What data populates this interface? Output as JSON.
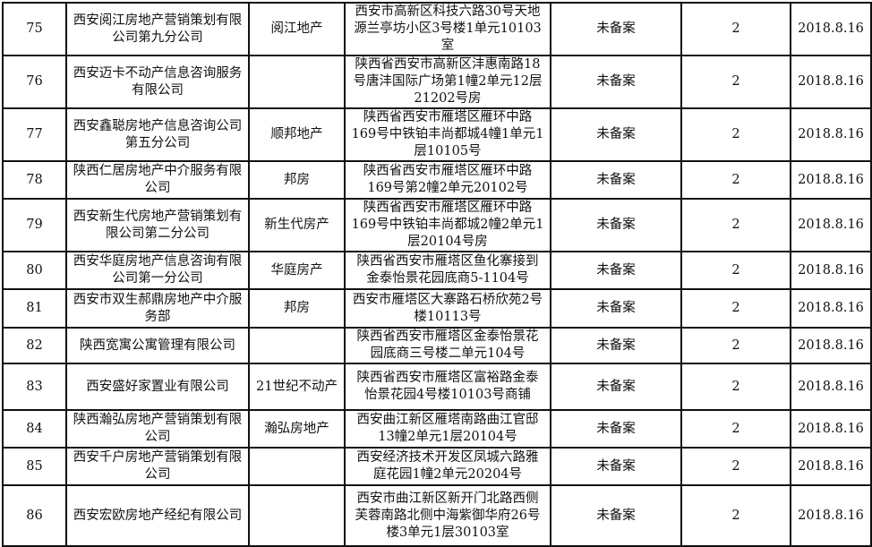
{
  "rows": [
    {
      "no": "75",
      "company": "西安阅江房地产营销策划有限公司第九分公司",
      "brand": "阅江地产",
      "address": "西安市高新区科技六路30号天地源兰亭坊小区3号楼1单元10103室",
      "status": "未备案",
      "count": "2",
      "date": "2018.8.16"
    },
    {
      "no": "76",
      "company": "西安迈卡不动产信息咨询服务有限公司",
      "brand": "",
      "address": "陕西省西安市高新区沣惠南路18号唐沣国际广场第1幢2单元12层21202号房",
      "status": "未备案",
      "count": "2",
      "date": "2018.8.16"
    },
    {
      "no": "77",
      "company": "西安鑫聪房地产信息咨询公司第五分公司",
      "brand": "顺邦地产",
      "address": "陕西省西安市雁塔区雁环中路169号中铁铂丰尚都城4幢1单元1层10105号",
      "status": "未备案",
      "count": "2",
      "date": "2018.8.16"
    },
    {
      "no": "78",
      "company": "陕西仁居房地产中介服务有限公司",
      "brand": "邦房",
      "address": "陕西省西安市雁塔区雁环中路169号第2幢2单元20102号",
      "status": "未备案",
      "count": "2",
      "date": "2018.8.16"
    },
    {
      "no": "79",
      "company": "西安新生代房地产营销策划有限公司第二分公司",
      "brand": "新生代房产",
      "address": "陕西省西安市雁塔区雁环中路169号中铁铂丰尚都城2幢2单元1层20104号房",
      "status": "未备案",
      "count": "2",
      "date": "2018.8.16"
    },
    {
      "no": "80",
      "company": "西安华庭房地产信息咨询有限公司第一分公司",
      "brand": "华庭房产",
      "address": "陕西省西安市雁塔区鱼化寨接到金泰怡景花园底商5-1104号",
      "status": "未备案",
      "count": "2",
      "date": "2018.8.16"
    },
    {
      "no": "81",
      "company": "西安市双生郝鼎房地产中介服务部",
      "brand": "邦房",
      "address": "西安市雁塔区大寨路石桥欣苑2号楼10113号",
      "status": "未备案",
      "count": "2",
      "date": "2018.8.16"
    },
    {
      "no": "82",
      "company": "陕西宽寓公寓管理有限公司",
      "brand": "",
      "address": "陕西省西安市雁塔区金泰怡景花园底商三号楼二单元104号",
      "status": "未备案",
      "count": "2",
      "date": "2018.8.16"
    },
    {
      "no": "83",
      "company": "西安盛好家置业有限公司",
      "brand": "21世纪不动产",
      "address": "陕西省西安市雁塔区富裕路金泰怡景花园4号楼10103号商铺",
      "status": "未备案",
      "count": "2",
      "date": "2018.8.16"
    },
    {
      "no": "84",
      "company": "陕西瀚弘房地产营销策划有限公司",
      "brand": "瀚弘房地产",
      "address": "西安曲江新区雁塔南路曲江官邸13幢2单元1层20104号",
      "status": "未备案",
      "count": "2",
      "date": "2018.8.16"
    },
    {
      "no": "85",
      "company": "西安千户房地产营销策划有限公司",
      "brand": "",
      "address": "西安经济技术开发区凤城六路雅庭花园1幢2单元20204号",
      "status": "未备案",
      "count": "2",
      "date": "2018.8.16"
    },
    {
      "no": "86",
      "company": "西安宏欧房地产经纪有限公司",
      "brand": "",
      "address": "西安市曲江新区新开门北路西侧芙蓉南路北侧中海紫御华府26号楼3单元1层30103室",
      "status": "未备案",
      "count": "2",
      "date": "2018.8.16"
    }
  ]
}
